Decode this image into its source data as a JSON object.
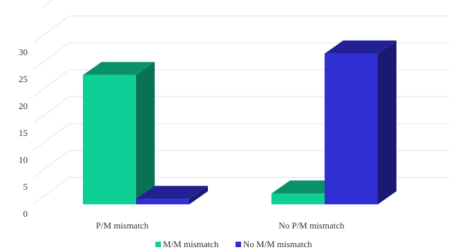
{
  "chart_data": {
    "type": "bar",
    "categories": [
      "P/M mismatch",
      "No P/M mismatch"
    ],
    "series": [
      {
        "name": "M/M mismatch",
        "values": [
          24,
          2
        ],
        "color": "#0ecf96"
      },
      {
        "name": "No M/M mismatch",
        "values": [
          1,
          28
        ],
        "color": "#2f2fd3"
      }
    ],
    "ylim": [
      0,
      30
    ],
    "yticks": [
      0,
      5,
      10,
      15,
      20,
      25,
      30
    ],
    "grid": true,
    "legend_position": "bottom",
    "style": "3d"
  }
}
